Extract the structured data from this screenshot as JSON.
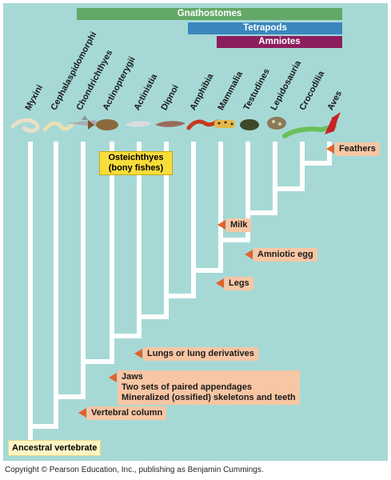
{
  "clades_bars": {
    "gnathostomes": "Gnathostomes",
    "tetrapods": "Tetrapods",
    "amniotes": "Amniotes"
  },
  "taxa": [
    "Myxini",
    "Cephalaspidomorphi",
    "Chondrichthyes",
    "Actinopterygii",
    "Actinistia",
    "Dipnoi",
    "Amphibia",
    "Mammalia",
    "Testudines",
    "Lepidosauria",
    "Crocodilia",
    "Aves"
  ],
  "group_box": {
    "line1": "Osteichthyes",
    "line2": "(bony fishes)"
  },
  "characters": {
    "feathers": "Feathers",
    "milk": "Milk",
    "amniotic_egg": "Amniotic egg",
    "legs": "Legs",
    "lungs": "Lungs or lung derivatives",
    "jaws_line1": "Jaws",
    "jaws_line2": "Two sets of paired appendages",
    "jaws_line3": "Mineralized (ossified) skeletons and teeth",
    "vertebral_column": "Vertebral column"
  },
  "root_label": "Ancestral vertebrate",
  "copyright": "Copyright © Pearson Education, Inc., publishing as Benjamin Cummings.",
  "colors": {
    "background": "#a6d9d6",
    "branch": "#ffffff",
    "gnathostomes_bar": "#63a867",
    "tetrapods_bar": "#3a86be",
    "amniotes_bar": "#8c1e5e",
    "character_label": "#f7c6a4",
    "character_arrow": "#e2622c",
    "group_box": "#f8dc3a"
  }
}
